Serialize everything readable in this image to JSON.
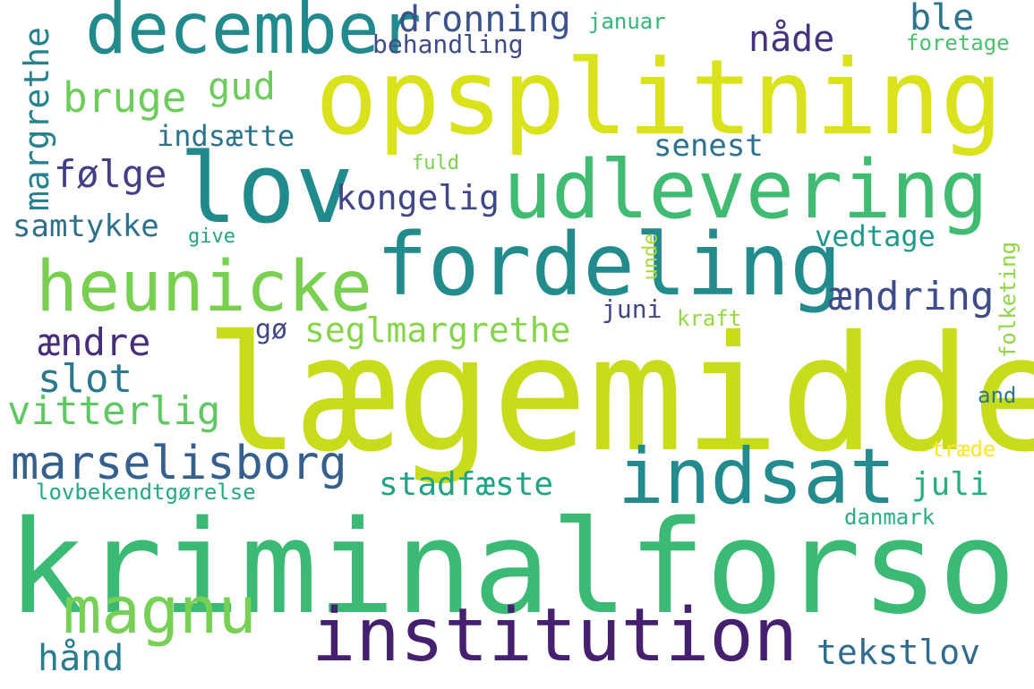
{
  "words": [
    {
      "text": "lægemiddel",
      "color": "#c8dc1c"
    },
    {
      "text": "kriminalforsorg",
      "color": "#3bba75"
    },
    {
      "text": "opsplitning",
      "color": "#d9e21a"
    },
    {
      "text": "udlevering",
      "color": "#3fbb72"
    },
    {
      "text": "lov",
      "color": "#1f8b8c"
    },
    {
      "text": "december",
      "color": "#218a8d"
    },
    {
      "text": "fordeling",
      "color": "#228c8d"
    },
    {
      "text": "heunicke",
      "color": "#79d050"
    },
    {
      "text": "indsat",
      "color": "#238a8d"
    },
    {
      "text": "institution",
      "color": "#44206e"
    },
    {
      "text": "magnu",
      "color": "#75d054"
    },
    {
      "text": "marselisborg",
      "color": "#355f8d"
    },
    {
      "text": "dronning",
      "color": "#3b528b"
    },
    {
      "text": "bruge",
      "color": "#6ccd5a"
    },
    {
      "text": "gud",
      "color": "#6ccd5a"
    },
    {
      "text": "nåde",
      "color": "#46327e"
    },
    {
      "text": "ble",
      "color": "#2b768e"
    },
    {
      "text": "behandling",
      "color": "#3e4a89"
    },
    {
      "text": "januar",
      "color": "#34b679"
    },
    {
      "text": "foretage",
      "color": "#4ac16d"
    },
    {
      "text": "margrethe",
      "color": "#26828e"
    },
    {
      "text": "indsætte",
      "color": "#2c748e"
    },
    {
      "text": "følge",
      "color": "#433e85"
    },
    {
      "text": "kongelig",
      "color": "#3f4788"
    },
    {
      "text": "senest",
      "color": "#2c728e"
    },
    {
      "text": "fuld",
      "color": "#7cd14f"
    },
    {
      "text": "samtykke",
      "color": "#2d708e"
    },
    {
      "text": "give",
      "color": "#20a386"
    },
    {
      "text": "vedtage",
      "color": "#1f998a"
    },
    {
      "text": "unde",
      "color": "#a8db34"
    },
    {
      "text": "folketing",
      "color": "#8fd744"
    },
    {
      "text": "ændring",
      "color": "#3e4c8a"
    },
    {
      "text": "juni",
      "color": "#3f4788"
    },
    {
      "text": "kraft",
      "color": "#95d840"
    },
    {
      "text": "gø",
      "color": "#3f4788"
    },
    {
      "text": "seglmargrethe",
      "color": "#86d549"
    },
    {
      "text": "ændre",
      "color": "#472d7b"
    },
    {
      "text": "slot",
      "color": "#2a788e"
    },
    {
      "text": "vitterlig",
      "color": "#5ec962"
    },
    {
      "text": "and",
      "color": "#2a788e"
    },
    {
      "text": "træde",
      "color": "#fde725"
    },
    {
      "text": "stadfæste",
      "color": "#20a486"
    },
    {
      "text": "juli",
      "color": "#26ad81"
    },
    {
      "text": "lovbekendtgørelse",
      "color": "#24aa83"
    },
    {
      "text": "danmark",
      "color": "#29af7f"
    },
    {
      "text": "tekstlov",
      "color": "#2f6c8e"
    },
    {
      "text": "hånd",
      "color": "#287d8e"
    }
  ]
}
